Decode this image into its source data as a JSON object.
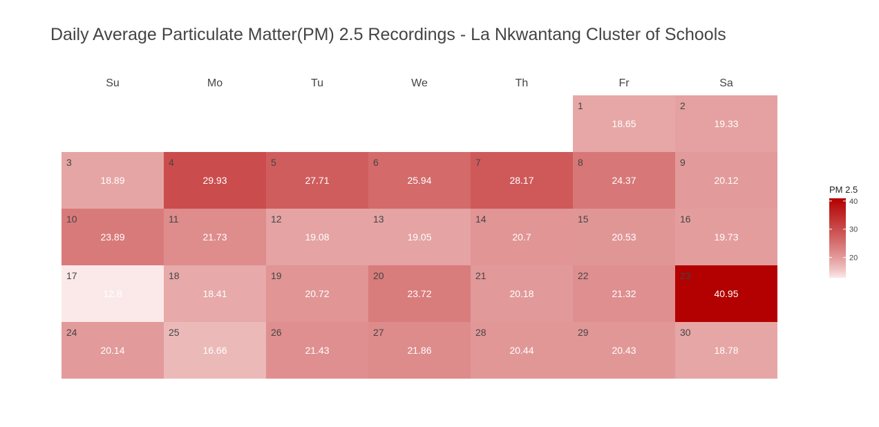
{
  "chart_data": {
    "type": "heatmap",
    "title": "Daily Average Particulate Matter(PM) 2.5 Recordings - La Nkwantang Cluster of Schools",
    "weekdays": [
      "Su",
      "Mo",
      "Tu",
      "We",
      "Th",
      "Fr",
      "Sa"
    ],
    "first_weekday_index": 5,
    "days": [
      {
        "day": "1",
        "value": 18.65,
        "label": "18.65"
      },
      {
        "day": "2",
        "value": 19.33,
        "label": "19.33"
      },
      {
        "day": "3",
        "value": 18.89,
        "label": "18.89"
      },
      {
        "day": "4",
        "value": 29.93,
        "label": "29.93"
      },
      {
        "day": "5",
        "value": 27.71,
        "label": "27.71"
      },
      {
        "day": "6",
        "value": 25.94,
        "label": "25.94"
      },
      {
        "day": "7",
        "value": 28.17,
        "label": "28.17"
      },
      {
        "day": "8",
        "value": 24.37,
        "label": "24.37"
      },
      {
        "day": "9",
        "value": 20.12,
        "label": "20.12"
      },
      {
        "day": "10",
        "value": 23.89,
        "label": "23.89"
      },
      {
        "day": "11",
        "value": 21.73,
        "label": "21.73"
      },
      {
        "day": "12",
        "value": 19.08,
        "label": "19.08"
      },
      {
        "day": "13",
        "value": 19.05,
        "label": "19.05"
      },
      {
        "day": "14",
        "value": 20.7,
        "label": "20.7"
      },
      {
        "day": "15",
        "value": 20.53,
        "label": "20.53"
      },
      {
        "day": "16",
        "value": 19.73,
        "label": "19.73"
      },
      {
        "day": "17",
        "value": 12.8,
        "label": "12.8"
      },
      {
        "day": "18",
        "value": 18.41,
        "label": "18.41"
      },
      {
        "day": "19",
        "value": 20.72,
        "label": "20.72"
      },
      {
        "day": "20",
        "value": 23.72,
        "label": "23.72"
      },
      {
        "day": "21",
        "value": 20.18,
        "label": "20.18"
      },
      {
        "day": "22",
        "value": 21.32,
        "label": "21.32"
      },
      {
        "day": "23",
        "value": 40.95,
        "label": "40.95"
      },
      {
        "day": "24",
        "value": 20.14,
        "label": "20.14"
      },
      {
        "day": "25",
        "value": 16.66,
        "label": "16.66"
      },
      {
        "day": "26",
        "value": 21.43,
        "label": "21.43"
      },
      {
        "day": "27",
        "value": 21.86,
        "label": "21.86"
      },
      {
        "day": "28",
        "value": 20.44,
        "label": "20.44"
      },
      {
        "day": "29",
        "value": 20.43,
        "label": "20.43"
      },
      {
        "day": "30",
        "value": 18.78,
        "label": "18.78"
      }
    ],
    "color_scale": {
      "min": 12.8,
      "max": 40.95,
      "low_color": "#fbe9e9",
      "high_color": "#b30000"
    },
    "legend": {
      "title": "PM 2.5",
      "ticks": [
        "40",
        "30",
        "20"
      ],
      "placement": "right"
    }
  }
}
